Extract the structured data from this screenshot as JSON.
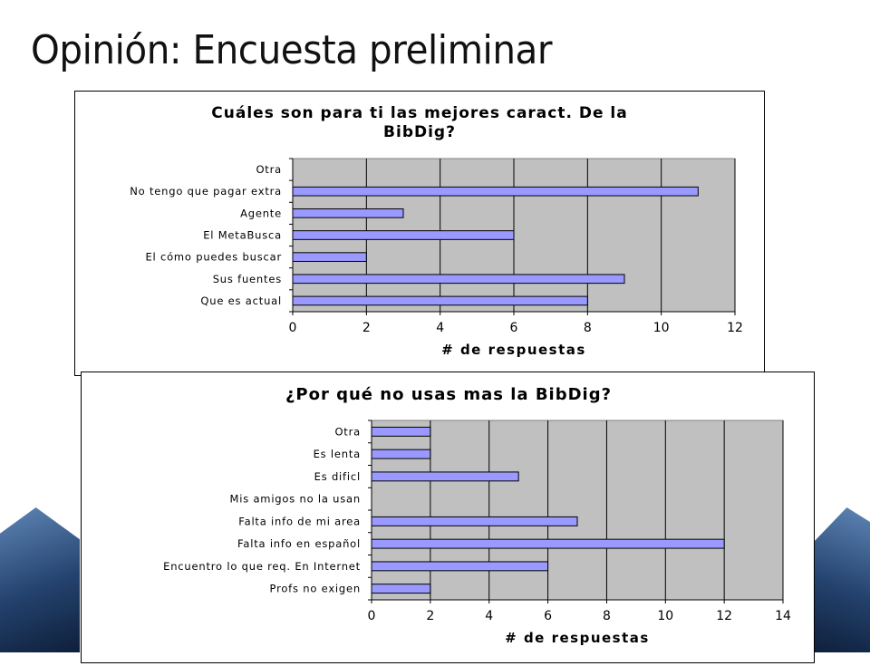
{
  "slide": {
    "title": "Opinión: Encuesta preliminar"
  },
  "colors": {
    "bar": "#9999ff",
    "plot_bg": "#c0c0c0",
    "frame": "#000000"
  },
  "chart_data": [
    {
      "type": "bar",
      "orientation": "horizontal",
      "title": "Cuáles son para ti las mejores caract. De la BibDig?",
      "title_lines": [
        "Cuáles son para ti las mejores caract. De la",
        "BibDig?"
      ],
      "xlabel": "# de respuestas",
      "xlim": [
        0,
        12
      ],
      "xticks": [
        0,
        2,
        4,
        6,
        8,
        10,
        12
      ],
      "categories": [
        "Otra",
        "No tengo que pagar extra",
        "Agente",
        "El MetaBusca",
        "El cómo puedes buscar",
        "Sus fuentes",
        "Que es actual"
      ],
      "values": [
        0,
        11,
        3,
        6,
        2,
        9,
        8
      ],
      "grid": "vertical",
      "legend": "none"
    },
    {
      "type": "bar",
      "orientation": "horizontal",
      "title": "¿Por qué no usas mas la BibDig?",
      "xlabel": "# de respuestas",
      "xlim": [
        0,
        14
      ],
      "xticks": [
        0,
        2,
        4,
        6,
        8,
        10,
        12,
        14
      ],
      "categories": [
        "Otra",
        "Es lenta",
        "Es dificl",
        "Mis amigos no la usan",
        "Falta info de mi area",
        "Falta info en español",
        "Encuentro lo que req. En Internet",
        "Profs no exigen"
      ],
      "values": [
        2,
        2,
        5,
        0,
        7,
        12,
        6,
        2
      ],
      "grid": "vertical",
      "legend": "none"
    }
  ]
}
